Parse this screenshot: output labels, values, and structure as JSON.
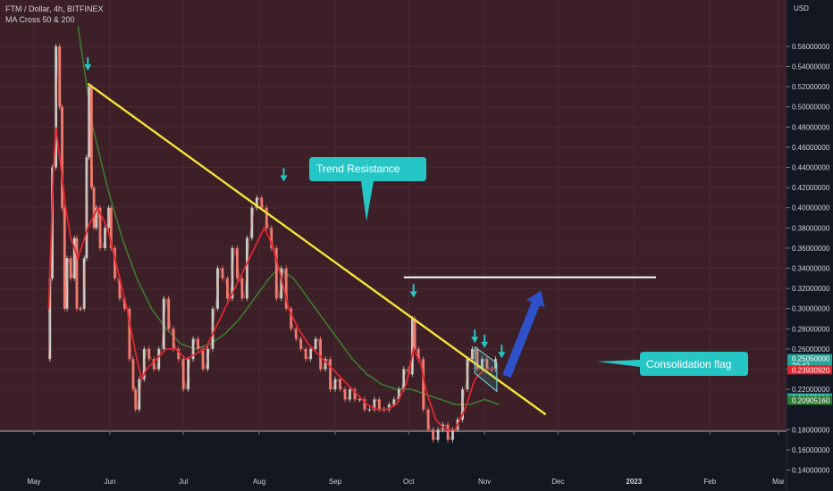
{
  "legend": {
    "symbol_line": "FTM / Dollar, 4h, BITFINEX",
    "indicator_line": "MA Cross 50 & 200"
  },
  "colors": {
    "background": "#131722",
    "plot_fill": "#3c1f27",
    "trendline": "#f5e33a",
    "ma_fast": "#e0262c",
    "ma_slow": "#3d7a2e",
    "candle_up": "#c8cfc8",
    "candle_down": "#f27a6f",
    "callout": "#26c6c6",
    "arrow": "#2962ff",
    "resistance_line": "#ffffff"
  },
  "chart_data": {
    "type": "line",
    "title": "FTM / Dollar, 4h, BITFINEX",
    "subtitle": "MA Cross 50 & 200",
    "x_axis": {
      "tick_labels": [
        "May",
        "Jun",
        "Jul",
        "Aug",
        "Sep",
        "Oct",
        "Nov",
        "Dec",
        "2023",
        "Feb",
        "Mar"
      ],
      "tick_days": [
        0,
        31,
        61,
        92,
        123,
        153,
        184,
        214,
        245,
        276,
        304
      ]
    },
    "y_axis": {
      "unit": "USD",
      "range": [
        0.13,
        0.575
      ],
      "tick_labels": [
        "0.56000000",
        "0.54000000",
        "0.52000000",
        "0.50000000",
        "0.48000000",
        "0.46000000",
        "0.44000000",
        "0.42000000",
        "0.40000000",
        "0.38000000",
        "0.36000000",
        "0.34000000",
        "0.32000000",
        "0.30000000",
        "0.28000000",
        "0.26000000",
        "0.24000000",
        "0.22000000",
        "0.18000000",
        "0.16000000",
        "0.14000000"
      ],
      "tick_values": [
        0.56,
        0.54,
        0.52,
        0.5,
        0.48,
        0.46,
        0.44,
        0.42,
        0.4,
        0.38,
        0.36,
        0.34,
        0.32,
        0.3,
        0.28,
        0.26,
        0.24,
        0.22,
        0.18,
        0.16,
        0.14
      ],
      "price_labels": [
        {
          "text": "0.25050000",
          "sub": "29:47",
          "value": 0.2505,
          "color": "#26a69a"
        },
        {
          "text": "0.23930920",
          "value": 0.2393,
          "color": "#e0262c"
        },
        {
          "text": "0.21158600",
          "value": 0.2116,
          "color": "#26a69a"
        },
        {
          "text": "0.20905160",
          "value": 0.2091,
          "color": "#2e7d32"
        }
      ]
    },
    "price_series": {
      "name": "FTM / Dollar",
      "points": [
        [
          6,
          0.25
        ],
        [
          7,
          0.33
        ],
        [
          8,
          0.44
        ],
        [
          10,
          0.56
        ],
        [
          11,
          0.5
        ],
        [
          12,
          0.4
        ],
        [
          13,
          0.3
        ],
        [
          14,
          0.35
        ],
        [
          16,
          0.33
        ],
        [
          17,
          0.37
        ],
        [
          18,
          0.3
        ],
        [
          20,
          0.3
        ],
        [
          21,
          0.35
        ],
        [
          22,
          0.45
        ],
        [
          23,
          0.52
        ],
        [
          24,
          0.42
        ],
        [
          25,
          0.38
        ],
        [
          26,
          0.4
        ],
        [
          28,
          0.36
        ],
        [
          30,
          0.38
        ],
        [
          31,
          0.4
        ],
        [
          32,
          0.36
        ],
        [
          34,
          0.33
        ],
        [
          36,
          0.31
        ],
        [
          38,
          0.3
        ],
        [
          40,
          0.25
        ],
        [
          41,
          0.22
        ],
        [
          42,
          0.2
        ],
        [
          44,
          0.23
        ],
        [
          46,
          0.26
        ],
        [
          48,
          0.25
        ],
        [
          50,
          0.24
        ],
        [
          52,
          0.26
        ],
        [
          54,
          0.31
        ],
        [
          56,
          0.28
        ],
        [
          58,
          0.26
        ],
        [
          60,
          0.25
        ],
        [
          62,
          0.22
        ],
        [
          64,
          0.25
        ],
        [
          66,
          0.27
        ],
        [
          68,
          0.26
        ],
        [
          70,
          0.24
        ],
        [
          72,
          0.26
        ],
        [
          74,
          0.3
        ],
        [
          76,
          0.34
        ],
        [
          78,
          0.33
        ],
        [
          80,
          0.31
        ],
        [
          82,
          0.36
        ],
        [
          84,
          0.33
        ],
        [
          86,
          0.31
        ],
        [
          88,
          0.37
        ],
        [
          90,
          0.4
        ],
        [
          92,
          0.41
        ],
        [
          94,
          0.4
        ],
        [
          96,
          0.38
        ],
        [
          98,
          0.36
        ],
        [
          100,
          0.31
        ],
        [
          102,
          0.34
        ],
        [
          104,
          0.3
        ],
        [
          106,
          0.28
        ],
        [
          108,
          0.27
        ],
        [
          110,
          0.26
        ],
        [
          112,
          0.25
        ],
        [
          114,
          0.26
        ],
        [
          116,
          0.27
        ],
        [
          118,
          0.24
        ],
        [
          120,
          0.25
        ],
        [
          122,
          0.22
        ],
        [
          124,
          0.23
        ],
        [
          126,
          0.22
        ],
        [
          128,
          0.21
        ],
        [
          130,
          0.22
        ],
        [
          132,
          0.21
        ],
        [
          134,
          0.21
        ],
        [
          136,
          0.2
        ],
        [
          138,
          0.2
        ],
        [
          140,
          0.21
        ],
        [
          142,
          0.2
        ],
        [
          144,
          0.2
        ],
        [
          146,
          0.205
        ],
        [
          148,
          0.21
        ],
        [
          150,
          0.22
        ],
        [
          152,
          0.24
        ],
        [
          154,
          0.235
        ],
        [
          155,
          0.29
        ],
        [
          156,
          0.26
        ],
        [
          158,
          0.25
        ],
        [
          160,
          0.2
        ],
        [
          162,
          0.18
        ],
        [
          164,
          0.17
        ],
        [
          166,
          0.18
        ],
        [
          168,
          0.185
        ],
        [
          170,
          0.17
        ],
        [
          172,
          0.18
        ],
        [
          174,
          0.19
        ],
        [
          176,
          0.22
        ],
        [
          178,
          0.25
        ],
        [
          180,
          0.26
        ],
        [
          182,
          0.24
        ],
        [
          184,
          0.25
        ],
        [
          186,
          0.24
        ],
        [
          188,
          0.24
        ],
        [
          189,
          0.25
        ]
      ]
    },
    "ma_fast": {
      "name": "MA 50",
      "points": [
        [
          6,
          0.3
        ],
        [
          8,
          0.44
        ],
        [
          9,
          0.48
        ],
        [
          11,
          0.44
        ],
        [
          13,
          0.4
        ],
        [
          15,
          0.37
        ],
        [
          18,
          0.35
        ],
        [
          22,
          0.38
        ],
        [
          26,
          0.4
        ],
        [
          30,
          0.38
        ],
        [
          34,
          0.34
        ],
        [
          38,
          0.3
        ],
        [
          42,
          0.25
        ],
        [
          44,
          0.23
        ],
        [
          46,
          0.24
        ],
        [
          50,
          0.25
        ],
        [
          54,
          0.26
        ],
        [
          58,
          0.26
        ],
        [
          62,
          0.25
        ],
        [
          66,
          0.255
        ],
        [
          70,
          0.26
        ],
        [
          74,
          0.28
        ],
        [
          78,
          0.3
        ],
        [
          82,
          0.32
        ],
        [
          86,
          0.34
        ],
        [
          90,
          0.36
        ],
        [
          94,
          0.38
        ],
        [
          97,
          0.365
        ],
        [
          100,
          0.34
        ],
        [
          104,
          0.3
        ],
        [
          108,
          0.28
        ],
        [
          112,
          0.265
        ],
        [
          116,
          0.255
        ],
        [
          120,
          0.245
        ],
        [
          124,
          0.235
        ],
        [
          128,
          0.225
        ],
        [
          132,
          0.215
        ],
        [
          136,
          0.205
        ],
        [
          140,
          0.2
        ],
        [
          144,
          0.2
        ],
        [
          148,
          0.205
        ],
        [
          152,
          0.225
        ],
        [
          155,
          0.26
        ],
        [
          158,
          0.245
        ],
        [
          160,
          0.22
        ],
        [
          164,
          0.19
        ],
        [
          168,
          0.18
        ],
        [
          172,
          0.18
        ],
        [
          176,
          0.2
        ],
        [
          180,
          0.23
        ],
        [
          184,
          0.24
        ],
        [
          189,
          0.24
        ]
      ]
    },
    "ma_slow": {
      "name": "MA 200",
      "points": [
        [
          18,
          0.58
        ],
        [
          24,
          0.48
        ],
        [
          30,
          0.42
        ],
        [
          36,
          0.37
        ],
        [
          42,
          0.33
        ],
        [
          48,
          0.3
        ],
        [
          54,
          0.28
        ],
        [
          60,
          0.265
        ],
        [
          66,
          0.26
        ],
        [
          72,
          0.265
        ],
        [
          78,
          0.275
        ],
        [
          84,
          0.29
        ],
        [
          90,
          0.31
        ],
        [
          96,
          0.33
        ],
        [
          100,
          0.34
        ],
        [
          106,
          0.33
        ],
        [
          112,
          0.31
        ],
        [
          118,
          0.29
        ],
        [
          124,
          0.27
        ],
        [
          130,
          0.25
        ],
        [
          136,
          0.235
        ],
        [
          142,
          0.225
        ],
        [
          148,
          0.22
        ],
        [
          154,
          0.22
        ],
        [
          160,
          0.215
        ],
        [
          166,
          0.21
        ],
        [
          172,
          0.205
        ],
        [
          178,
          0.205
        ],
        [
          184,
          0.21
        ],
        [
          190,
          0.205
        ]
      ]
    },
    "annotations": {
      "trendline": {
        "label": "Trend Resistance",
        "from": [
          22,
          0.523
        ],
        "to": [
          209,
          0.195
        ]
      },
      "horizontal_line": {
        "value": 0.331,
        "from_day": 151,
        "to_day": 254
      },
      "consolidation_flag": {
        "label": "Consolidation flag",
        "upper": [
          [
            180,
            0.262
          ],
          [
            189,
            0.246
          ]
        ],
        "lower": [
          [
            180,
            0.236
          ],
          [
            189,
            0.218
          ]
        ]
      },
      "breakout_arrow": {
        "from": [
          193,
          0.233
        ],
        "to": [
          207,
          0.318
        ]
      },
      "down_markers": [
        [
          22,
          0.535
        ],
        [
          102,
          0.425
        ],
        [
          155,
          0.31
        ],
        [
          180,
          0.265
        ],
        [
          184,
          0.26
        ],
        [
          191,
          0.25
        ]
      ]
    }
  }
}
